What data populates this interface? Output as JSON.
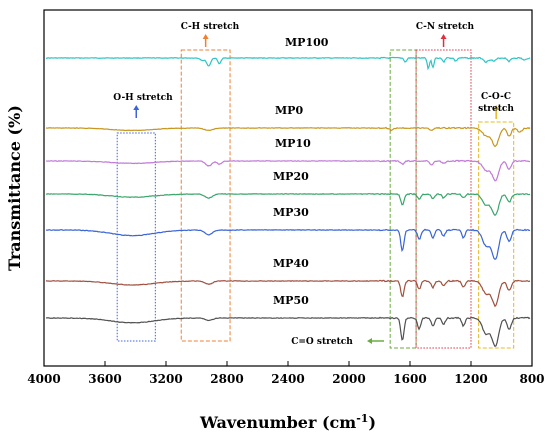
{
  "chart_data": {
    "type": "line",
    "title": "",
    "xlabel": "Wavenumber (cm",
    "xlabel_sup": "-1",
    "xlabel_tail": ")",
    "ylabel": "Transmittance (%)",
    "xlim": [
      4000,
      800
    ],
    "x_reversed": true,
    "x_ticks": [
      4000,
      3600,
      3200,
      2800,
      2400,
      2000,
      1600,
      1200,
      800
    ],
    "y_ticks_shown": false,
    "grid": false,
    "legend": "inline labels",
    "series": [
      {
        "name": "MP100",
        "color": "#2ec4c4",
        "features": [
          {
            "center": 2960,
            "depth": 0.3,
            "width": 20
          },
          {
            "center": 2920,
            "depth": 1.0,
            "width": 18
          },
          {
            "center": 2850,
            "depth": 0.7,
            "width": 15
          },
          {
            "center": 1630,
            "depth": 0.5,
            "width": 12
          },
          {
            "center": 1480,
            "depth": 1.4,
            "width": 10
          },
          {
            "center": 1450,
            "depth": 1.2,
            "width": 10
          },
          {
            "center": 1380,
            "depth": 0.5,
            "width": 10
          },
          {
            "center": 1300,
            "depth": 0.4,
            "width": 12
          },
          {
            "center": 1100,
            "depth": 0.5,
            "width": 20
          },
          {
            "center": 1050,
            "depth": 0.4,
            "width": 20
          },
          {
            "center": 950,
            "depth": 0.4,
            "width": 15
          },
          {
            "center": 850,
            "depth": 0.3,
            "width": 15
          }
        ]
      },
      {
        "name": "MP0",
        "color": "#c8961e",
        "features": [
          {
            "center": 3420,
            "depth": 0.3,
            "width": 200
          },
          {
            "center": 2920,
            "depth": 0.3,
            "width": 40
          },
          {
            "center": 1720,
            "depth": 0.3,
            "width": 15
          },
          {
            "center": 1460,
            "depth": 0.3,
            "width": 15
          },
          {
            "center": 1100,
            "depth": 1.0,
            "width": 35
          },
          {
            "center": 1040,
            "depth": 2.2,
            "width": 30
          },
          {
            "center": 950,
            "depth": 1.0,
            "width": 20
          },
          {
            "center": 880,
            "depth": 0.5,
            "width": 20
          }
        ]
      },
      {
        "name": "MP10",
        "color": "#c07ad8",
        "features": [
          {
            "center": 3420,
            "depth": 0.3,
            "width": 200
          },
          {
            "center": 2920,
            "depth": 0.6,
            "width": 30
          },
          {
            "center": 2850,
            "depth": 0.4,
            "width": 20
          },
          {
            "center": 1650,
            "depth": 0.4,
            "width": 15
          },
          {
            "center": 1460,
            "depth": 0.5,
            "width": 15
          },
          {
            "center": 1380,
            "depth": 0.3,
            "width": 15
          },
          {
            "center": 1100,
            "depth": 1.2,
            "width": 35
          },
          {
            "center": 1040,
            "depth": 2.4,
            "width": 30
          },
          {
            "center": 950,
            "depth": 1.0,
            "width": 20
          }
        ]
      },
      {
        "name": "MP20",
        "color": "#3aa66c",
        "features": [
          {
            "center": 3420,
            "depth": 0.4,
            "width": 200
          },
          {
            "center": 2920,
            "depth": 0.5,
            "width": 35
          },
          {
            "center": 1650,
            "depth": 1.4,
            "width": 15
          },
          {
            "center": 1540,
            "depth": 0.6,
            "width": 15
          },
          {
            "center": 1450,
            "depth": 0.6,
            "width": 15
          },
          {
            "center": 1380,
            "depth": 0.5,
            "width": 15
          },
          {
            "center": 1250,
            "depth": 0.5,
            "width": 15
          },
          {
            "center": 1100,
            "depth": 1.4,
            "width": 35
          },
          {
            "center": 1040,
            "depth": 2.6,
            "width": 30
          },
          {
            "center": 950,
            "depth": 1.0,
            "width": 20
          }
        ]
      },
      {
        "name": "MP30",
        "color": "#3a64d8",
        "features": [
          {
            "center": 3420,
            "depth": 0.7,
            "width": 200
          },
          {
            "center": 2920,
            "depth": 0.6,
            "width": 35
          },
          {
            "center": 1650,
            "depth": 2.6,
            "width": 15
          },
          {
            "center": 1540,
            "depth": 1.2,
            "width": 15
          },
          {
            "center": 1450,
            "depth": 1.0,
            "width": 15
          },
          {
            "center": 1380,
            "depth": 0.8,
            "width": 15
          },
          {
            "center": 1250,
            "depth": 1.0,
            "width": 15
          },
          {
            "center": 1100,
            "depth": 2.0,
            "width": 35
          },
          {
            "center": 1040,
            "depth": 3.6,
            "width": 30
          },
          {
            "center": 950,
            "depth": 1.4,
            "width": 20
          }
        ]
      },
      {
        "name": "MP40",
        "color": "#a05040",
        "features": [
          {
            "center": 3420,
            "depth": 0.5,
            "width": 200
          },
          {
            "center": 2920,
            "depth": 0.4,
            "width": 35
          },
          {
            "center": 1650,
            "depth": 2.0,
            "width": 15
          },
          {
            "center": 1540,
            "depth": 1.0,
            "width": 15
          },
          {
            "center": 1450,
            "depth": 0.8,
            "width": 15
          },
          {
            "center": 1380,
            "depth": 0.6,
            "width": 15
          },
          {
            "center": 1250,
            "depth": 0.8,
            "width": 15
          },
          {
            "center": 1100,
            "depth": 1.6,
            "width": 35
          },
          {
            "center": 1040,
            "depth": 3.0,
            "width": 30
          },
          {
            "center": 950,
            "depth": 1.2,
            "width": 20
          }
        ]
      },
      {
        "name": "MP50",
        "color": "#505050",
        "features": [
          {
            "center": 3420,
            "depth": 0.6,
            "width": 200
          },
          {
            "center": 2920,
            "depth": 0.3,
            "width": 35
          },
          {
            "center": 1650,
            "depth": 2.8,
            "width": 15
          },
          {
            "center": 1540,
            "depth": 1.4,
            "width": 15
          },
          {
            "center": 1450,
            "depth": 1.0,
            "width": 15
          },
          {
            "center": 1380,
            "depth": 0.8,
            "width": 15
          },
          {
            "center": 1250,
            "depth": 1.0,
            "width": 15
          },
          {
            "center": 1100,
            "depth": 2.0,
            "width": 35
          },
          {
            "center": 1040,
            "depth": 3.4,
            "width": 30
          },
          {
            "center": 950,
            "depth": 1.4,
            "width": 20
          }
        ]
      }
    ],
    "annotations": [
      {
        "label": "O-H stretch",
        "x_range": [
          3520,
          3270
        ],
        "color": "#3a64d8",
        "style": "dotted",
        "arrow": "up"
      },
      {
        "label": "C-H stretch",
        "x_range": [
          3100,
          2780
        ],
        "color": "#f08030",
        "style": "dashed",
        "arrow": "up"
      },
      {
        "label": "C=O stretch",
        "x_range": [
          1730,
          1560
        ],
        "color": "#6aaa40",
        "style": "dashed",
        "arrow": "left"
      },
      {
        "label": "C-N stretch",
        "x_range": [
          1560,
          1200
        ],
        "color": "#e03040",
        "style": "dotted",
        "arrow": "up"
      },
      {
        "label": "C-O-C",
        "label_line2": "stretch",
        "x_range": [
          1150,
          920
        ],
        "color": "#e8b820",
        "style": "dashed",
        "arrow": "up"
      }
    ]
  }
}
